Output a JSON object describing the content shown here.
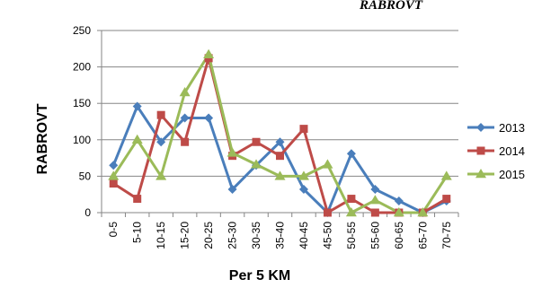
{
  "chart_data": {
    "type": "line",
    "title": "RABROVT",
    "xlabel": "Per 5 KM",
    "ylabel": "RABROVT",
    "ylim": [
      0,
      250
    ],
    "yticks": [
      0,
      50,
      100,
      150,
      200,
      250
    ],
    "grid": true,
    "legend_position": "right",
    "categories": [
      "0-5",
      "5-10",
      "10-15",
      "15-20",
      "20-25",
      "25-30",
      "30-35",
      "35-40",
      "40-45",
      "45-50",
      "50-55",
      "55-60",
      "60-65",
      "65-70",
      "70-75"
    ],
    "series": [
      {
        "name": "2013",
        "color": "#4a7ebb",
        "marker": "diamond",
        "values": [
          65,
          146,
          97,
          130,
          130,
          32,
          65,
          97,
          32,
          0,
          81,
          32,
          16,
          0,
          16
        ]
      },
      {
        "name": "2014",
        "color": "#be4b48",
        "marker": "square",
        "values": [
          40,
          19,
          134,
          97,
          212,
          78,
          97,
          78,
          115,
          0,
          19,
          0,
          0,
          0,
          19
        ]
      },
      {
        "name": "2015",
        "color": "#9bbb59",
        "marker": "triangle",
        "values": [
          50,
          100,
          50,
          165,
          217,
          82,
          66,
          50,
          50,
          66,
          0,
          17,
          0,
          0,
          50
        ]
      }
    ]
  }
}
